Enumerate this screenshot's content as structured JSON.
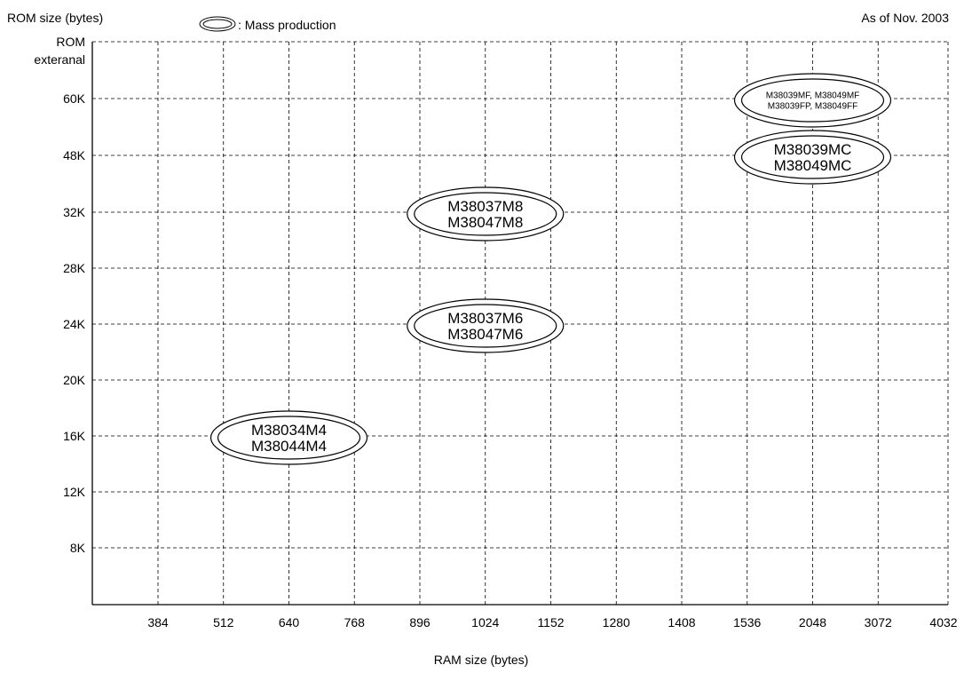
{
  "chart_data": {
    "type": "scatter",
    "title": "",
    "as_of": "As of Nov. 2003",
    "ylabel": "ROM size (bytes)",
    "xlabel": "RAM size (bytes)",
    "legend": {
      "label": ": Mass production",
      "placement": "top-left"
    },
    "grid": true,
    "x_categories": [
      "384",
      "512",
      "640",
      "768",
      "896",
      "1024",
      "1152",
      "1280",
      "1408",
      "1536",
      "2048",
      "3072",
      "4032"
    ],
    "y_categories": [
      "8K",
      "12K",
      "16K",
      "20K",
      "24K",
      "28K",
      "32K",
      "48K",
      "60K",
      "ROM\nexteranal"
    ],
    "points": [
      {
        "x": "640",
        "y": "16K",
        "labels": [
          "M38034M4",
          "M38044M4"
        ]
      },
      {
        "x": "1024",
        "y": "24K",
        "labels": [
          "M38037M6",
          "M38047M6"
        ]
      },
      {
        "x": "1024",
        "y": "32K",
        "labels": [
          "M38037M8",
          "M38047M8"
        ]
      },
      {
        "x": "2048",
        "y": "48K",
        "labels": [
          "M38039MC",
          "M38049MC"
        ]
      },
      {
        "x": "2048",
        "y": "60K",
        "labels": [
          "M38039MF, M38049MF",
          "M38039FP, M38049FF"
        ]
      }
    ]
  }
}
